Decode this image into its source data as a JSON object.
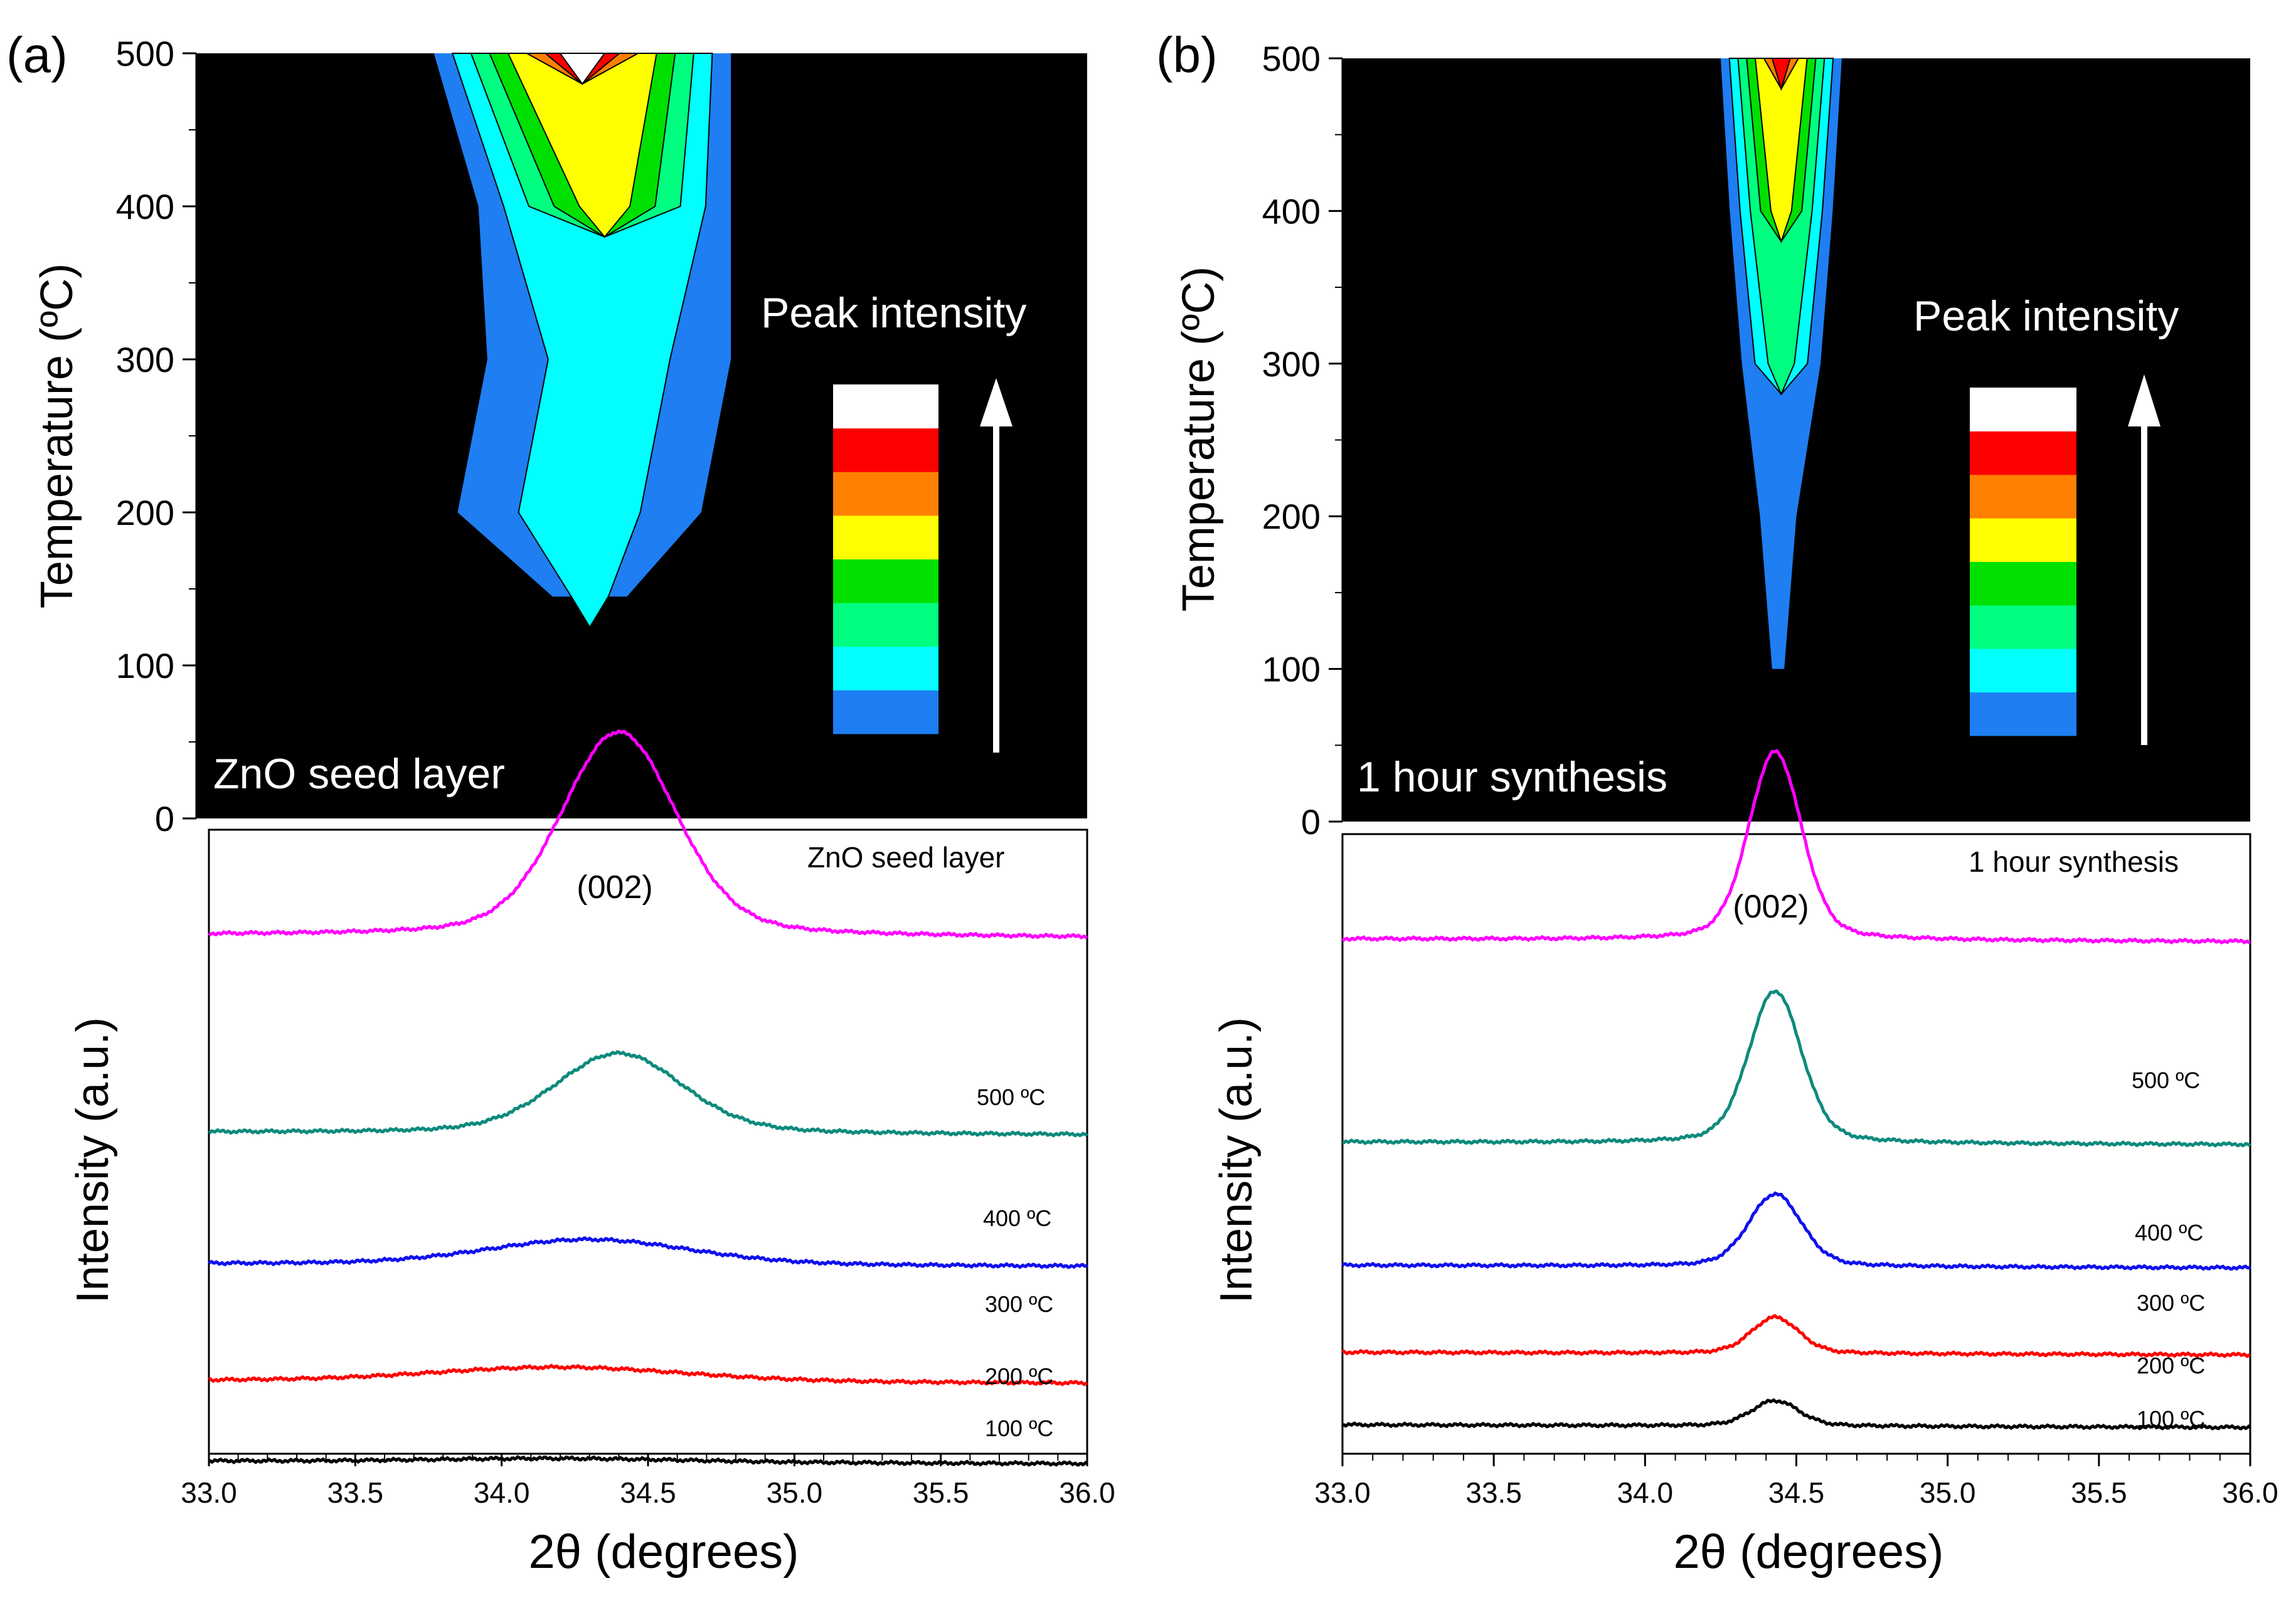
{
  "panels": [
    {
      "panel_label": "(a)",
      "contour": {
        "sample_label": "ZnO seed layer",
        "ylabel": "Temperature (ºC)",
        "y_ticks": [
          "0",
          "100",
          "200",
          "300",
          "400",
          "500"
        ],
        "legend_title": "Peak intensity"
      },
      "xrd": {
        "sample_label": "ZnO seed layer",
        "peak_label": "(002)",
        "xlabel": "2θ (degrees)",
        "ylabel": "Intensity (a.u.)",
        "x_ticks": [
          "33.0",
          "33.5",
          "34.0",
          "34.5",
          "35.0",
          "35.5",
          "36.0"
        ],
        "curve_labels": [
          "500 ºC",
          "400 ºC",
          "300 ºC",
          "200 ºC",
          "100 ºC"
        ]
      }
    },
    {
      "panel_label": "(b)",
      "contour": {
        "sample_label": "1 hour synthesis",
        "ylabel": "Temperature (ºC)",
        "y_ticks": [
          "0",
          "100",
          "200",
          "300",
          "400",
          "500"
        ],
        "legend_title": "Peak intensity"
      },
      "xrd": {
        "sample_label": "1 hour synthesis",
        "peak_label": "(002)",
        "xlabel": "2θ (degrees)",
        "ylabel": "Intensity (a.u.)",
        "x_ticks": [
          "33.0",
          "33.5",
          "34.0",
          "34.5",
          "35.0",
          "35.5",
          "36.0"
        ],
        "curve_labels": [
          "500 ºC",
          "400 ºC",
          "300 ºC",
          "200 ºC",
          "100 ºC"
        ]
      }
    }
  ],
  "colors": {
    "contour_background": "#000000",
    "intensity_scale": [
      "#1e7ef2",
      "#00ffff",
      "#00ff80",
      "#00e000",
      "#ffff00",
      "#ff8000",
      "#ff0000",
      "#ffffff"
    ],
    "curves": {
      "500 ºC": "#ff00ff",
      "400 ºC": "#0e8a7d",
      "300 ºC": "#1010ee",
      "200 ºC": "#ff0000",
      "100 ºC": "#000000"
    }
  },
  "chart_data": [
    {
      "type": "heatmap",
      "panel": "(a)",
      "ylabel": "Temperature (ºC)",
      "ylim": [
        0,
        500
      ],
      "xlim": [
        33.0,
        36.0
      ],
      "levels": 8,
      "contour_edges": [
        {
          "T": 500,
          "left": 33.8,
          "right": 34.8,
          "peak_level": 7
        },
        {
          "T": 400,
          "left": 33.95,
          "right": 34.8,
          "peak_level": 4
        },
        {
          "T": 300,
          "left": 33.98,
          "right": 34.8,
          "peak_level": 1
        },
        {
          "T": 200,
          "left": 33.88,
          "right": 34.7,
          "peak_level": 1
        },
        {
          "T": 145,
          "left": 34.2,
          "right": 34.45,
          "peak_level": 1
        }
      ]
    },
    {
      "type": "line",
      "panel": "(a)",
      "xlabel": "2θ (degrees)",
      "ylabel": "Intensity (a.u.)",
      "xlim": [
        33.0,
        36.0
      ],
      "x_ticks": [
        33.0,
        33.5,
        34.0,
        34.5,
        35.0,
        35.5,
        36.0
      ],
      "series": [
        {
          "name": "500 ºC",
          "center": 34.4,
          "fwhm": 0.45,
          "baseline": 0.5,
          "height": 2.8
        },
        {
          "name": "400 ºC",
          "center": 34.4,
          "fwhm": 0.5,
          "baseline": 3.2,
          "height": 1.1
        },
        {
          "name": "300 ºC",
          "center": 34.3,
          "fwhm": 0.8,
          "baseline": 5.0,
          "height": 0.35
        },
        {
          "name": "200 ºC",
          "center": 34.2,
          "fwhm": 1.0,
          "baseline": 6.6,
          "height": 0.2
        },
        {
          "name": "100 ºC",
          "center": 34.2,
          "fwhm": 1.0,
          "baseline": 7.7,
          "height": 0.05
        }
      ]
    },
    {
      "type": "heatmap",
      "panel": "(b)",
      "ylabel": "Temperature (ºC)",
      "ylim": [
        0,
        500
      ],
      "xlim": [
        33.0,
        36.0
      ],
      "levels": 8,
      "contour_edges": [
        {
          "T": 500,
          "left": 34.25,
          "right": 34.65,
          "peak_level": 6
        },
        {
          "T": 400,
          "left": 34.28,
          "right": 34.62,
          "peak_level": 4
        },
        {
          "T": 300,
          "left": 34.32,
          "right": 34.58,
          "peak_level": 2
        },
        {
          "T": 200,
          "left": 34.38,
          "right": 34.5,
          "peak_level": 0
        },
        {
          "T": 100,
          "left": 34.42,
          "right": 34.46,
          "peak_level": 0
        }
      ]
    },
    {
      "type": "line",
      "panel": "(b)",
      "xlabel": "2θ (degrees)",
      "ylabel": "Intensity (a.u.)",
      "xlim": [
        33.0,
        36.0
      ],
      "x_ticks": [
        33.0,
        33.5,
        34.0,
        34.5,
        35.0,
        35.5,
        36.0
      ],
      "series": [
        {
          "name": "500 ºC",
          "center": 34.43,
          "fwhm": 0.2,
          "baseline": 0.5,
          "height": 2.6
        },
        {
          "name": "400 ºC",
          "center": 34.43,
          "fwhm": 0.2,
          "baseline": 3.3,
          "height": 2.1
        },
        {
          "name": "300 ºC",
          "center": 34.43,
          "fwhm": 0.2,
          "baseline": 5.0,
          "height": 1.0
        },
        {
          "name": "200 ºC",
          "center": 34.43,
          "fwhm": 0.18,
          "baseline": 6.2,
          "height": 0.5
        },
        {
          "name": "100 ºC",
          "center": 34.43,
          "fwhm": 0.18,
          "baseline": 7.2,
          "height": 0.35
        }
      ]
    }
  ]
}
